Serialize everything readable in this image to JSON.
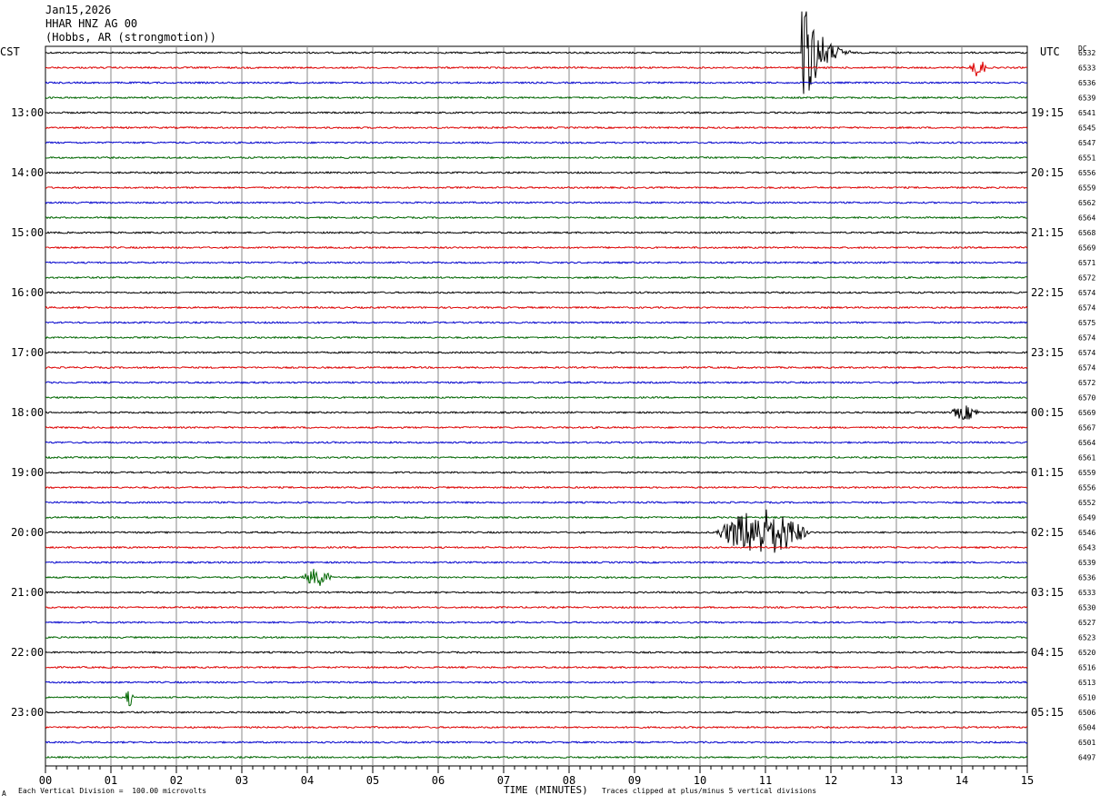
{
  "header": {
    "date": "Jan15,2026",
    "station": "HHAR HNZ AG 00",
    "location": "(Hobbs, AR (strongmotion))"
  },
  "left_axis_label": "CST",
  "right_axis_label": "UTC",
  "dc_label": "DC",
  "footer": {
    "scale_note": "Each Vertical Division =  100.00 microvolts",
    "clip_note": "Traces clipped at plus/minus 5 vertical divisions",
    "corner_mark": "A"
  },
  "chart_data": {
    "type": "line",
    "title": "",
    "xlabel": "TIME (MINUTES)",
    "xlim": [
      0,
      15
    ],
    "x_ticks": [
      "00",
      "01",
      "02",
      "03",
      "04",
      "05",
      "06",
      "07",
      "08",
      "09",
      "10",
      "11",
      "12",
      "13",
      "14",
      "15"
    ],
    "minutes_per_trace": 15,
    "trace_colors": [
      "#000000",
      "#dd0000",
      "#0000cc",
      "#006600"
    ],
    "left_time_labels": [
      {
        "trace": 4,
        "label": "13:00"
      },
      {
        "trace": 8,
        "label": "14:00"
      },
      {
        "trace": 12,
        "label": "15:00"
      },
      {
        "trace": 16,
        "label": "16:00"
      },
      {
        "trace": 20,
        "label": "17:00"
      },
      {
        "trace": 24,
        "label": "18:00"
      },
      {
        "trace": 28,
        "label": "19:00"
      },
      {
        "trace": 32,
        "label": "20:00"
      },
      {
        "trace": 36,
        "label": "21:00"
      },
      {
        "trace": 40,
        "label": "22:00"
      },
      {
        "trace": 44,
        "label": "23:00"
      }
    ],
    "right_time_labels": [
      {
        "trace": 4,
        "label": "19:15"
      },
      {
        "trace": 8,
        "label": "20:15"
      },
      {
        "trace": 12,
        "label": "21:15"
      },
      {
        "trace": 16,
        "label": "22:15"
      },
      {
        "trace": 20,
        "label": "23:15"
      },
      {
        "trace": 24,
        "label": "00:15"
      },
      {
        "trace": 28,
        "label": "01:15"
      },
      {
        "trace": 32,
        "label": "02:15"
      },
      {
        "trace": 36,
        "label": "03:15"
      },
      {
        "trace": 40,
        "label": "04:15"
      },
      {
        "trace": 44,
        "label": "05:15"
      }
    ],
    "dc_offsets": [
      "6532",
      "6533",
      "6536",
      "6539",
      "6541",
      "6545",
      "6547",
      "6551",
      "6556",
      "6559",
      "6562",
      "6564",
      "6568",
      "6569",
      "6571",
      "6572",
      "6574",
      "6574",
      "6575",
      "6574",
      "6574",
      "6574",
      "6572",
      "6570",
      "6569",
      "6567",
      "6564",
      "6561",
      "6559",
      "6556",
      "6552",
      "6549",
      "6546",
      "6543",
      "6539",
      "6536",
      "6533",
      "6530",
      "6527",
      "6523",
      "6520",
      "6516",
      "6513",
      "6510",
      "6506",
      "6504",
      "6501",
      "6497"
    ],
    "events": [
      {
        "trace": 0,
        "start": 11.55,
        "end": 12.3,
        "peak": 5,
        "clipped": true
      },
      {
        "trace": 1,
        "start": 14.1,
        "end": 14.4,
        "peak": 0.6
      },
      {
        "trace": 24,
        "start": 13.8,
        "end": 14.3,
        "peak": 0.5
      },
      {
        "trace": 32,
        "start": 10.2,
        "end": 11.7,
        "peak": 1.6
      },
      {
        "trace": 35,
        "start": 3.9,
        "end": 4.4,
        "peak": 0.6
      },
      {
        "trace": 43,
        "start": 1.2,
        "end": 1.35,
        "peak": 0.6
      }
    ]
  }
}
